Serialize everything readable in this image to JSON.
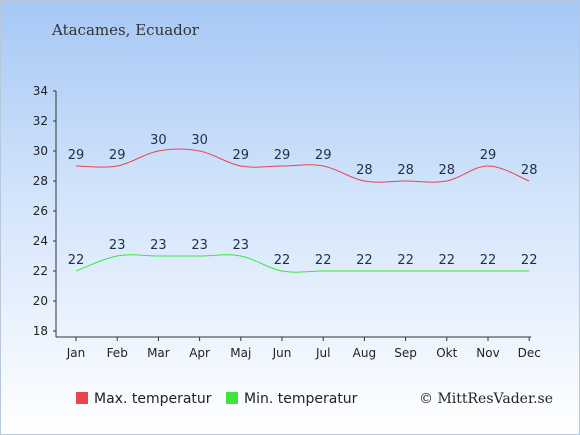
{
  "chart_data": {
    "type": "line",
    "title": "Atacames, Ecuador",
    "categories": [
      "Jan",
      "Feb",
      "Mar",
      "Apr",
      "Maj",
      "Jun",
      "Jul",
      "Aug",
      "Sep",
      "Okt",
      "Nov",
      "Dec"
    ],
    "series": [
      {
        "name": "Max. temperatur",
        "values": [
          29,
          29,
          30,
          30,
          29,
          29,
          29,
          28,
          28,
          28,
          29,
          28
        ],
        "color": "#e8454f"
      },
      {
        "name": "Min. temperatur",
        "values": [
          22,
          23,
          23,
          23,
          23,
          22,
          22,
          22,
          22,
          22,
          22,
          22
        ],
        "color": "#3fe33f"
      }
    ],
    "ylim": [
      18,
      34
    ],
    "yticks": [
      "18",
      "20",
      "22",
      "24",
      "26",
      "28",
      "30",
      "32",
      "34"
    ],
    "grid": false,
    "legend_position": "bottom-left"
  },
  "copyright": "© MittResVader.se"
}
